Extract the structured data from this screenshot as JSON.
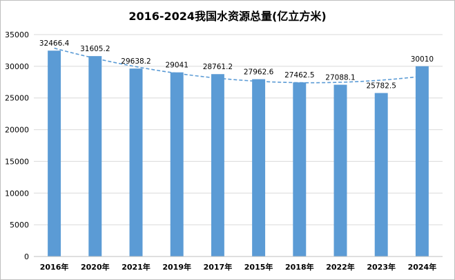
{
  "chart_data": {
    "type": "bar",
    "title": "2016-2024我国水资源总量(亿立方米)",
    "categories": [
      "2016年",
      "2020年",
      "2021年",
      "2019年",
      "2017年",
      "2015年",
      "2018年",
      "2022年",
      "2023年",
      "2024年"
    ],
    "series": [
      {
        "values": [
          32466.4,
          31605.2,
          29638.2,
          29041,
          28761.2,
          27962.6,
          27462.5,
          27088.1,
          25782.5,
          30010
        ],
        "labels": [
          "32466.4",
          "31605.2",
          "29638.2",
          "29041",
          "28761.2",
          "27962.6",
          "27462.5",
          "27088.1",
          "25782.5",
          "30010"
        ]
      }
    ],
    "trendline": {
      "type": "polynomial",
      "style": "dashed"
    },
    "yticks": [
      "0",
      "5000",
      "10000",
      "15000",
      "20000",
      "25000",
      "30000",
      "35000"
    ],
    "ylim": [
      0,
      35000
    ],
    "grid": true,
    "legend": "none",
    "colors": {
      "bar": "#5b9bd5",
      "trendline": "#5b9bd5",
      "grid": "#d9d9d9"
    }
  }
}
